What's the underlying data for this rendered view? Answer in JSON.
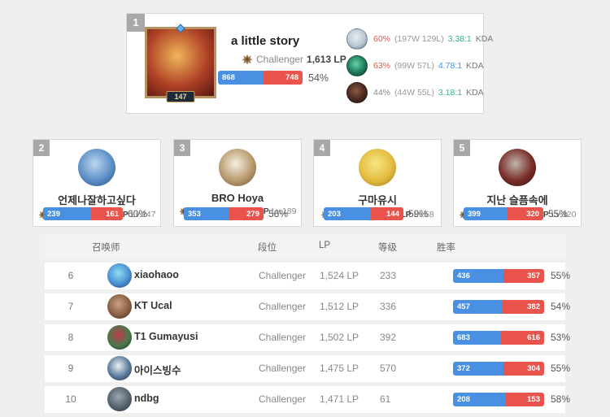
{
  "colors": {
    "win_blue": "#4a90e2",
    "loss_red": "#e8544c",
    "winrate_red": "#e2544c",
    "kda_teal": "#3cb395",
    "kda_blue": "#4a90e2",
    "badge_gray": "#a8a8a8"
  },
  "top_player": {
    "rank": "1",
    "name": "a little story",
    "level": "147",
    "tier_label": "Challenger",
    "lp": "1,613 LP",
    "wins": 868,
    "losses": 748,
    "winrate": "54%",
    "avatar": {
      "icon": "summoner-avatar",
      "colors": [
        "#f0b65a",
        "#b04226",
        "#571510"
      ]
    },
    "champions": [
      {
        "icon": "champion-icon",
        "colors": [
          "#e9eef2",
          "#b8c8d4",
          "#5a7080"
        ],
        "winrate": "60%",
        "winrate_color": "#e2544c",
        "record": "(197W 129L)",
        "kda": "3.38:1",
        "kda_color": "#3cb395",
        "kda_label": "KDA"
      },
      {
        "icon": "champion-icon",
        "colors": [
          "#63d6a8",
          "#1f7a5c",
          "#0e2e26"
        ],
        "winrate": "63%",
        "winrate_color": "#e2544c",
        "record": "(99W 57L)",
        "kda": "4.78:1",
        "kda_color": "#4a90e2",
        "kda_label": "KDA"
      },
      {
        "icon": "champion-icon",
        "colors": [
          "#8a5a40",
          "#4a2a22",
          "#1c1210"
        ],
        "winrate": "44%",
        "winrate_color": "#888888",
        "record": "(44W 55L)",
        "kda": "3.18:1",
        "kda_color": "#3cb395",
        "kda_label": "KDA"
      }
    ]
  },
  "top_cards": [
    {
      "rank": "2",
      "name": "언제나잘하고싶다",
      "tier_label": "Challenger",
      "lp": "1,613 LP",
      "level_label": "Lv.247",
      "wins": 239,
      "losses": 161,
      "winrate": "60%",
      "avatar": {
        "icon": "summoner-avatar",
        "colors": [
          "#bcd8f0",
          "#5d8fc7",
          "#2a4f7e"
        ]
      }
    },
    {
      "rank": "3",
      "name": "BRO Hoya",
      "tier_label": "Challenger",
      "lp": "1,562 LP",
      "level_label": "Lv.189",
      "wins": 353,
      "losses": 279,
      "winrate": "56%",
      "avatar": {
        "icon": "summoner-avatar",
        "colors": [
          "#f5efe2",
          "#b99b6e",
          "#6a5136"
        ]
      }
    },
    {
      "rank": "4",
      "name": "구마유시",
      "tier_label": "Challenger",
      "lp": "1,557 LP",
      "level_label": "Lv.58",
      "wins": 203,
      "losses": 144,
      "winrate": "59%",
      "avatar": {
        "icon": "summoner-avatar",
        "colors": [
          "#f7e684",
          "#e3bc3f",
          "#9c7a1e"
        ]
      }
    },
    {
      "rank": "5",
      "name": "지난 슬픔속에",
      "tier_label": "Challenger",
      "lp": "1,547 LP",
      "level_label": "Lv.320",
      "wins": 399,
      "losses": 320,
      "winrate": "55%",
      "avatar": {
        "icon": "summoner-avatar",
        "colors": [
          "#c0b4ac",
          "#7a2e2a",
          "#2e0f0e"
        ]
      }
    }
  ],
  "table": {
    "headers": [
      "召唤师",
      "段位",
      "LP",
      "等级",
      "胜率"
    ],
    "rows": [
      {
        "rank": "6",
        "name": "xiaohaoo",
        "tier": "Challenger",
        "lp": "1,524 LP",
        "level": "233",
        "wins": 436,
        "losses": 357,
        "winrate": "55%",
        "avatar": {
          "icon": "summoner-avatar",
          "colors": [
            "#8fdcf0",
            "#4a90d4",
            "#20395e"
          ]
        }
      },
      {
        "rank": "7",
        "name": "KT Ucal",
        "tier": "Challenger",
        "lp": "1,512 LP",
        "level": "336",
        "wins": 457,
        "losses": 382,
        "winrate": "54%",
        "avatar": {
          "icon": "summoner-avatar",
          "colors": [
            "#caa183",
            "#8a5f46",
            "#43281d"
          ]
        }
      },
      {
        "rank": "8",
        "name": "T1 Gumayusi",
        "tier": "Challenger",
        "lp": "1,502 LP",
        "level": "392",
        "wins": 683,
        "losses": 616,
        "winrate": "53%",
        "avatar": {
          "icon": "summoner-avatar",
          "colors": [
            "#c23a4a",
            "#4a7a4a",
            "#14281a"
          ]
        }
      },
      {
        "rank": "9",
        "name": "아이스빙수",
        "tier": "Challenger",
        "lp": "1,475 LP",
        "level": "570",
        "wins": 372,
        "losses": 304,
        "winrate": "55%",
        "avatar": {
          "icon": "summoner-avatar",
          "colors": [
            "#eef3f6",
            "#5a7a9a",
            "#1c2c44"
          ]
        }
      },
      {
        "rank": "10",
        "name": "ndbg",
        "tier": "Challenger",
        "lp": "1,471 LP",
        "level": "61",
        "wins": 208,
        "losses": 153,
        "winrate": "58%",
        "avatar": {
          "icon": "summoner-avatar",
          "colors": [
            "#9aa7b4",
            "#55636f",
            "#232c34"
          ]
        }
      }
    ]
  }
}
